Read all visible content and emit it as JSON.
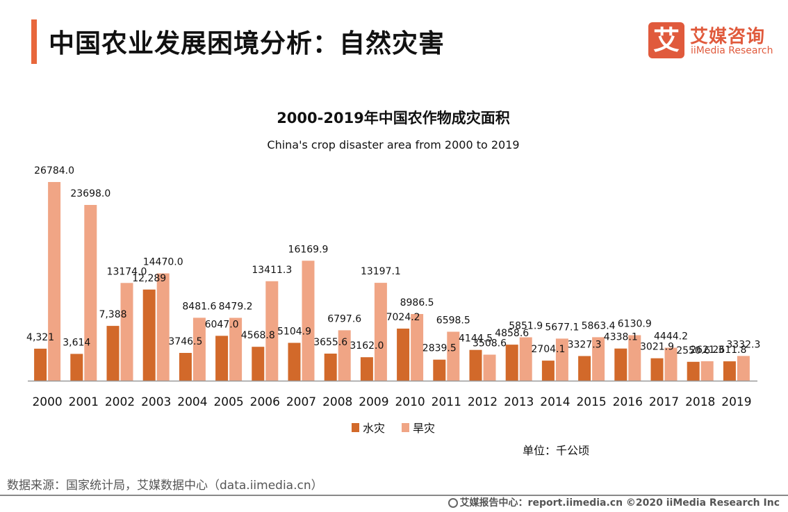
{
  "header": {
    "title": "中国农业发展困境分析：自然灾害",
    "logo_glyph": "艾",
    "logo_cn": "艾媒咨询",
    "logo_en": "iiMedia Research",
    "accent_color": "#e8673c"
  },
  "chart_data": {
    "type": "bar",
    "title": "2000-2019年中国农作物成灾面积",
    "subtitle": "China's crop disaster area from 2000 to 2019",
    "xlabel": "",
    "ylabel": "",
    "unit_label": "单位：千公顷",
    "categories": [
      "2000",
      "2001",
      "2002",
      "2003",
      "2004",
      "2005",
      "2006",
      "2007",
      "2008",
      "2009",
      "2010",
      "2011",
      "2012",
      "2013",
      "2014",
      "2015",
      "2016",
      "2017",
      "2018",
      "2019"
    ],
    "series": [
      {
        "name": "水灾",
        "color": "#d2692a",
        "values": [
          4321,
          3614,
          7388,
          12289,
          3746.5,
          6047.0,
          4568.8,
          5104.9,
          3655.6,
          3162.0,
          7024.2,
          2839.5,
          4144.5,
          4858.6,
          2704.1,
          3327.3,
          4338.1,
          3021.9,
          2550.6,
          2611.8
        ],
        "labels": [
          "4,321",
          "3,614",
          "7,388",
          "12,289",
          "3746.5",
          "6047.0",
          "4568.8",
          "5104.9",
          "3655.6",
          "3162.0",
          "7024.2",
          "2839.5",
          "4144.5",
          "4858.6",
          "2704.1",
          "3327.3",
          "4338.1",
          "3021.9",
          "2550.6",
          "2611.8"
        ]
      },
      {
        "name": "旱灾",
        "color": "#f0a585",
        "values": [
          26784.0,
          23698.0,
          13174.0,
          14470.0,
          8481.6,
          8479.2,
          13411.3,
          16169.9,
          6797.6,
          13197.1,
          8986.5,
          6598.5,
          3508.6,
          5851.9,
          5677.1,
          5863.4,
          6130.9,
          4444.2,
          2621.3,
          3332.3
        ],
        "labels": [
          "26784.0",
          "23698.0",
          "13174.0",
          "14470.0",
          "8481.6",
          "8479.2",
          "13411.3",
          "16169.9",
          "6797.6",
          "13197.1",
          "8986.5",
          "6598.5",
          "3508.6",
          "5851.9",
          "5677.1",
          "5863.4",
          "6130.9",
          "4444.2",
          "2621.3",
          "3332.3"
        ]
      }
    ],
    "ylim": [
      0,
      27000
    ],
    "grid": false,
    "legend": "bottom-center"
  },
  "footer": {
    "source": "数据来源：国家统计局，艾媒数据中心（data.iimedia.cn）",
    "copyright": "艾媒报告中心：report.iimedia.cn  ©2020  iiMedia Research  Inc"
  }
}
